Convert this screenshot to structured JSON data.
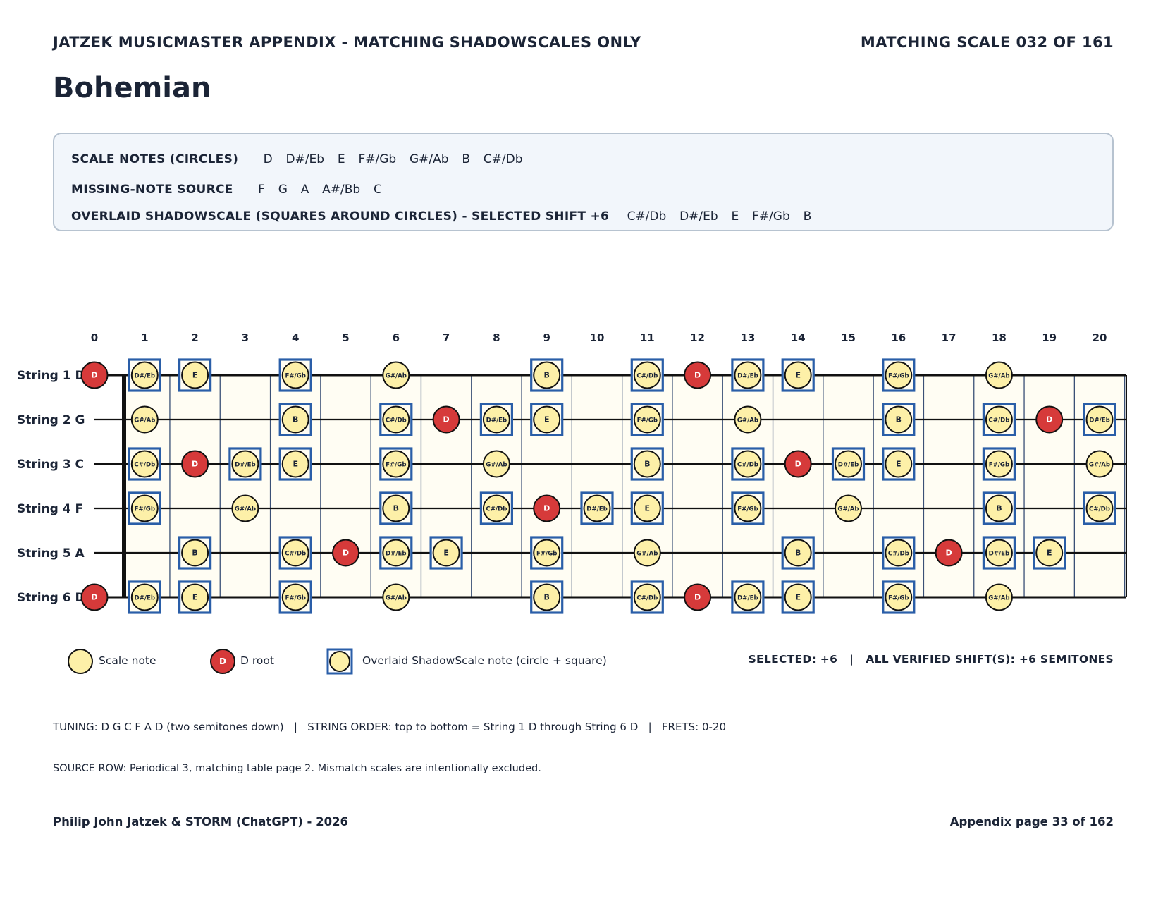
{
  "header": {
    "appendix_title": "JATZEK MUSICMASTER APPENDIX - MATCHING SHADOWSCALES ONLY",
    "scale_counter": "MATCHING SCALE 032 OF 161"
  },
  "scale_name": "Bohemian",
  "info": {
    "scale_notes_label": "SCALE NOTES (CIRCLES)",
    "scale_notes_value": "D  D#/Eb  E  F#/Gb  G#/Ab  B  C#/Db",
    "missing_label": "MISSING-NOTE SOURCE",
    "missing_value": "F  G  A  A#/Bb  C",
    "overlay_label": "OVERLAID SHADOWSCALE (SQUARES AROUND CIRCLES) - SELECTED SHIFT +6",
    "overlay_value": "C#/Db  D#/Eb  E  F#/Gb  B"
  },
  "fretboard": {
    "fret_numbers": [
      "0",
      "1",
      "2",
      "3",
      "4",
      "5",
      "6",
      "7",
      "8",
      "9",
      "10",
      "11",
      "12",
      "13",
      "14",
      "15",
      "16",
      "17",
      "18",
      "19",
      "20"
    ],
    "strings": [
      {
        "label": "String 1 D",
        "open": "D"
      },
      {
        "label": "String 2 G",
        "open": "G"
      },
      {
        "label": "String 3 C",
        "open": "C"
      },
      {
        "label": "String 4 F",
        "open": "F"
      },
      {
        "label": "String 5 A",
        "open": "A"
      },
      {
        "label": "String 6 D",
        "open": "D"
      }
    ],
    "chromatic": [
      "C",
      "C#/Db",
      "D",
      "D#/Eb",
      "E",
      "F",
      "F#/Gb",
      "G",
      "G#/Ab",
      "A",
      "A#/Bb",
      "B"
    ],
    "scale_notes": [
      "D",
      "D#/Eb",
      "E",
      "F#/Gb",
      "G#/Ab",
      "B",
      "C#/Db"
    ],
    "overlay_notes": [
      "C#/Db",
      "D#/Eb",
      "E",
      "F#/Gb",
      "B"
    ],
    "root": "D"
  },
  "legend": {
    "scale_note": "Scale note",
    "root_symbol": "D",
    "root_label": "D root",
    "overlay_label": "Overlaid ShadowScale note (circle + square)",
    "selected": "SELECTED: +6   |   ALL VERIFIED SHIFT(S): +6 SEMITONES"
  },
  "footer": {
    "tuning": "TUNING: D G C F A D (two semitones down)   |   STRING ORDER: top to bottom = String 1 D through String 6 D   |   FRETS: 0-20",
    "source": "SOURCE ROW: Periodical 3, matching table page 2. Mismatch scales are intentionally excluded.",
    "authors": "Philip John Jatzek & STORM (ChatGPT) - 2026",
    "page": "Appendix page 33 of 162"
  },
  "colors": {
    "ink": "#1b2436",
    "note_fill": "#fdf0a8",
    "root_fill": "#d63a3a",
    "overlay_square": "#2a5ea8",
    "fret_line": "#3a5076",
    "board_fill": "#fffdf3"
  }
}
